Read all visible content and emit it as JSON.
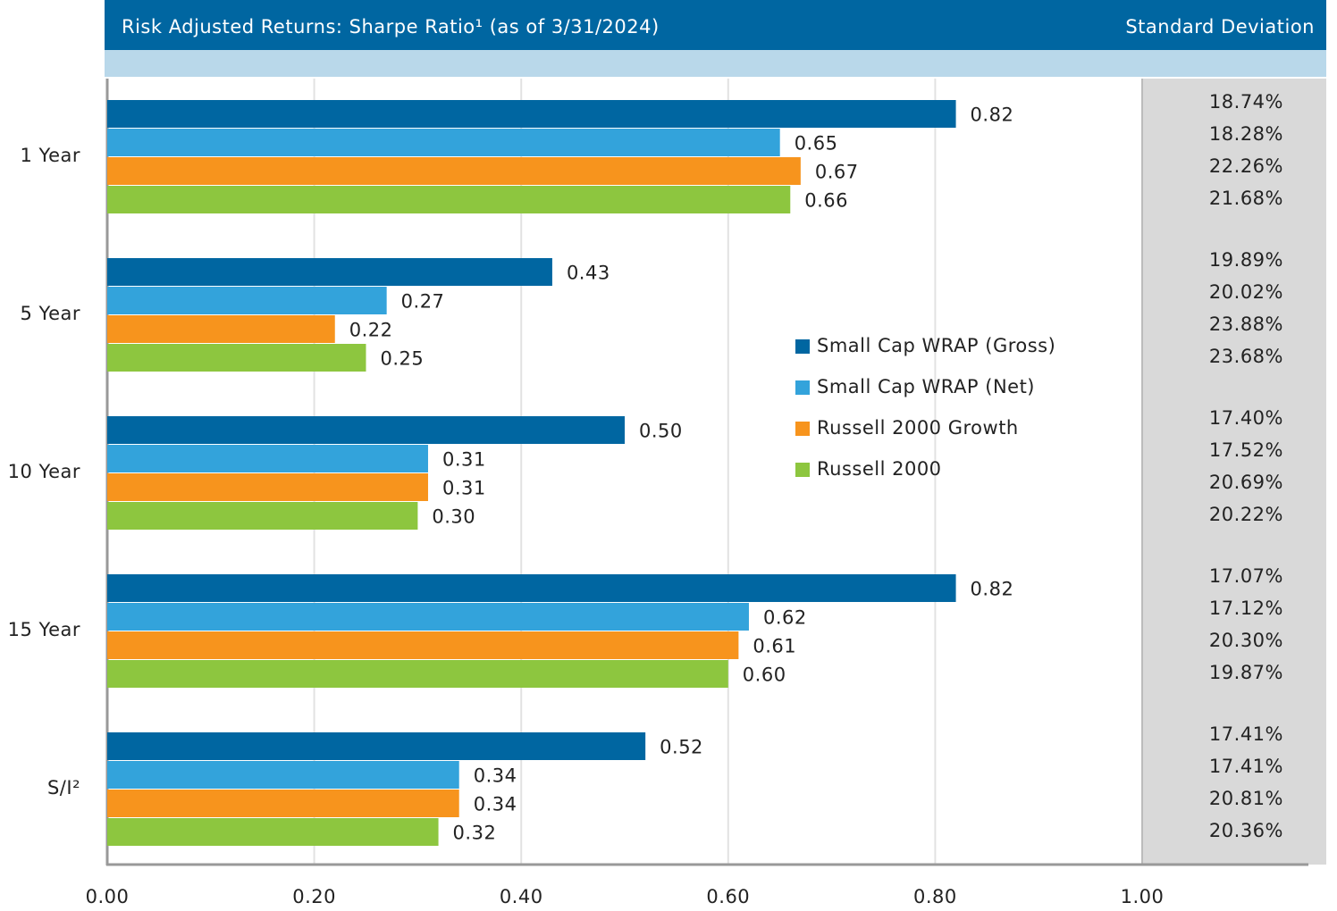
{
  "chart_data": {
    "type": "bar",
    "orientation": "horizontal",
    "title": "Risk Adjusted Returns: Sharpe Ratio¹ (as of 3/31/2024)",
    "side_title": "Standard Deviation",
    "categories": [
      "1 Year",
      "5 Year",
      "10 Year",
      "15 Year",
      "S/I²"
    ],
    "series": [
      {
        "name": "Small Cap WRAP (Gross)",
        "color": "#0066a1",
        "values": [
          0.82,
          0.43,
          0.5,
          0.82,
          0.52
        ],
        "value_labels": [
          "0.82",
          "0.43",
          "0.50",
          "0.82",
          "0.52"
        ],
        "std_dev": [
          18.74,
          19.89,
          17.4,
          17.07,
          17.41
        ],
        "std_dev_labels": [
          "18.74%",
          "19.89%",
          "17.40%",
          "17.07%",
          "17.41%"
        ]
      },
      {
        "name": "Small Cap WRAP (Net)",
        "color": "#33a3db",
        "values": [
          0.65,
          0.27,
          0.31,
          0.62,
          0.34
        ],
        "value_labels": [
          "0.65",
          "0.27",
          "0.31",
          "0.62",
          "0.34"
        ],
        "std_dev": [
          18.28,
          20.02,
          17.52,
          17.12,
          17.41
        ],
        "std_dev_labels": [
          "18.28%",
          "20.02%",
          "17.52%",
          "17.12%",
          "17.41%"
        ]
      },
      {
        "name": "Russell 2000 Growth",
        "color": "#f7941d",
        "values": [
          0.67,
          0.22,
          0.31,
          0.61,
          0.34
        ],
        "value_labels": [
          "0.67",
          "0.22",
          "0.31",
          "0.61",
          "0.34"
        ],
        "std_dev": [
          22.26,
          23.88,
          20.69,
          20.3,
          20.81
        ],
        "std_dev_labels": [
          "22.26%",
          "23.88%",
          "20.69%",
          "20.30%",
          "20.81%"
        ]
      },
      {
        "name": "Russell 2000",
        "color": "#8dc63f",
        "values": [
          0.66,
          0.25,
          0.3,
          0.6,
          0.32
        ],
        "value_labels": [
          "0.66",
          "0.25",
          "0.30",
          "0.60",
          "0.32"
        ],
        "std_dev": [
          21.68,
          23.68,
          20.22,
          19.87,
          20.36
        ],
        "std_dev_labels": [
          "21.68%",
          "23.68%",
          "20.22%",
          "19.87%",
          "20.36%"
        ]
      }
    ],
    "xlim": [
      0,
      1
    ],
    "xticks": [
      {
        "value": 0,
        "label": "0.00"
      },
      {
        "value": 0.2,
        "label": "0.20"
      },
      {
        "value": 0.4,
        "label": "0.40"
      },
      {
        "value": 0.6,
        "label": "0.60"
      },
      {
        "value": 0.8,
        "label": "0.80"
      },
      {
        "value": 1,
        "label": "1.00"
      }
    ],
    "grid": true,
    "legend": "center-right"
  }
}
